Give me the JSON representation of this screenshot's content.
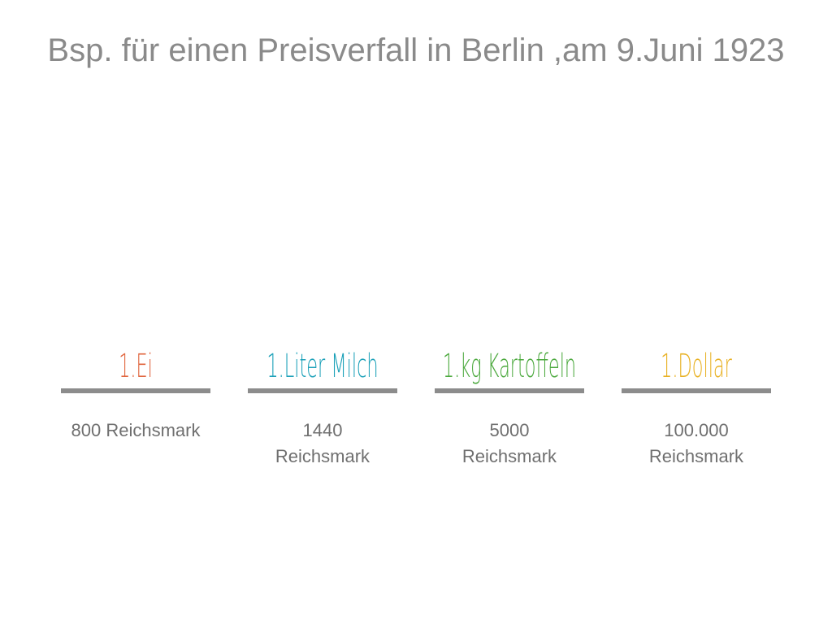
{
  "title": "Bsp. für einen Preisverfall in Berlin ,am 9.Juni 1923",
  "items": [
    {
      "heading": "1.Ei",
      "color": "#e0643c",
      "price_line1": "800 Reichsmark",
      "price_line2": ""
    },
    {
      "heading": "1.Liter Milch",
      "color": "#1aa0b8",
      "price_line1": "1440",
      "price_line2": "Reichsmark"
    },
    {
      "heading": "1.kg Kartoffeln",
      "color": "#4aa83c",
      "price_line1": "5000",
      "price_line2": "Reichsmark"
    },
    {
      "heading": "1.Dollar",
      "color": "#e8b020",
      "price_line1": "100.000",
      "price_line2": "Reichsmark"
    }
  ]
}
